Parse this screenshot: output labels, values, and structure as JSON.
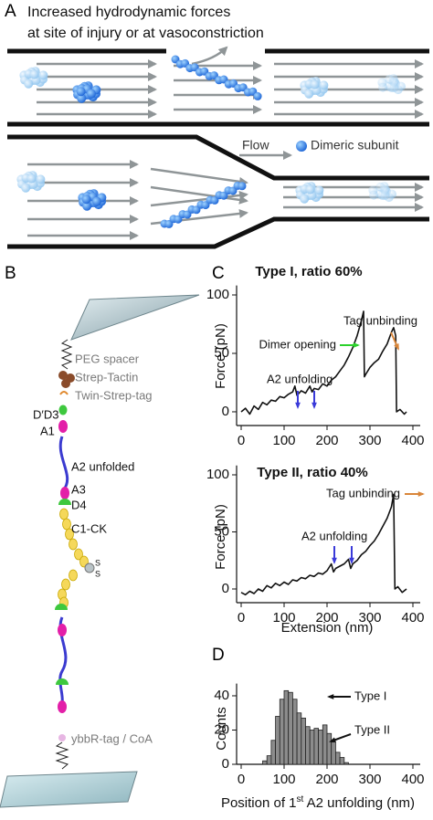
{
  "panel_a": {
    "label": "A",
    "title_lines": [
      "Increased hydrodynamic forces",
      "at site of injury or at vasoconstriction"
    ],
    "legend_flow": "Flow",
    "legend_subunit": "Dimeric subunit"
  },
  "panel_b": {
    "label": "B",
    "labels": [
      "PEG spacer",
      "Strep-Tactin",
      "Twin-Strep-tag",
      "D′D3",
      "A1",
      "A2 unfolded",
      "A3",
      "D4",
      "C1-CK",
      "S",
      "S",
      "ybbR-tag / CoA"
    ]
  },
  "panel_c": {
    "label": "C"
  },
  "panel_d": {
    "label": "D"
  },
  "chart_data": [
    {
      "type": "line",
      "title": "Type I, ratio 60%",
      "ylabel": "Force (pN)",
      "color": "#111111",
      "x": [
        0,
        10,
        20,
        30,
        40,
        50,
        60,
        70,
        80,
        90,
        100,
        110,
        120,
        125,
        130,
        140,
        150,
        160,
        165,
        170,
        180,
        190,
        200,
        210,
        220,
        230,
        240,
        250,
        260,
        270,
        280,
        285,
        287,
        290,
        300,
        310,
        320,
        330,
        340,
        350,
        355,
        360,
        362,
        370,
        380,
        385
      ],
      "values": [
        0,
        3,
        -2,
        5,
        2,
        8,
        6,
        10,
        9,
        13,
        12,
        15,
        17,
        22,
        14,
        18,
        16,
        22,
        17,
        20,
        19,
        24,
        22,
        27,
        30,
        35,
        40,
        47,
        55,
        65,
        78,
        86,
        30,
        32,
        38,
        42,
        45,
        52,
        58,
        68,
        72,
        65,
        0,
        2,
        -2,
        0
      ],
      "xlim": [
        0,
        400
      ],
      "ylim": [
        -8,
        105
      ],
      "xticks": [
        0,
        100,
        200,
        300,
        400
      ],
      "yticks": [
        0,
        50,
        100
      ],
      "annotations": [
        {
          "text": "Dimer opening",
          "color": "#2bd12b"
        },
        {
          "text": "Tag unbinding",
          "color": "#d9863a"
        },
        {
          "text": "A2 unfolding",
          "color": "#3a3ad9"
        }
      ]
    },
    {
      "type": "line",
      "title": "Type II, ratio 40%",
      "ylabel": "Force (pN)",
      "xlabel": "Extension (nm)",
      "color": "#111111",
      "x": [
        0,
        10,
        20,
        30,
        40,
        50,
        60,
        70,
        80,
        90,
        100,
        110,
        120,
        130,
        140,
        150,
        160,
        170,
        180,
        190,
        200,
        210,
        215,
        220,
        230,
        240,
        250,
        255,
        260,
        270,
        280,
        290,
        300,
        310,
        320,
        330,
        340,
        350,
        355,
        358,
        365,
        375,
        385
      ],
      "values": [
        -3,
        -5,
        -2,
        -4,
        0,
        -2,
        3,
        1,
        5,
        3,
        6,
        4,
        8,
        7,
        10,
        9,
        12,
        11,
        14,
        13,
        16,
        22,
        15,
        18,
        20,
        22,
        26,
        18,
        22,
        25,
        30,
        33,
        38,
        42,
        48,
        55,
        62,
        72,
        83,
        0,
        2,
        -3,
        0
      ],
      "xlim": [
        0,
        400
      ],
      "ylim": [
        -8,
        105
      ],
      "xticks": [
        0,
        100,
        200,
        300,
        400
      ],
      "yticks": [
        0,
        50,
        100
      ],
      "annotations": [
        {
          "text": "Tag unbinding",
          "color": "#d9863a"
        },
        {
          "text": "A2 unfolding",
          "color": "#3a3ad9"
        }
      ]
    },
    {
      "type": "histogram",
      "ylabel": "Counts",
      "xlabel_parts": [
        "Position of 1",
        "st",
        " A2 unfolding (nm)"
      ],
      "color": "#8c8c8c",
      "bins": [
        50,
        60,
        70,
        80,
        90,
        100,
        110,
        120,
        130,
        140,
        150,
        160,
        170,
        180,
        190,
        200,
        210,
        220,
        230,
        240,
        250
      ],
      "values": [
        2,
        5,
        14,
        28,
        38,
        43,
        42,
        38,
        30,
        27,
        22,
        20,
        21,
        20,
        23,
        18,
        13,
        7,
        4,
        1
      ],
      "xlim": [
        0,
        400
      ],
      "ylim": [
        0,
        45
      ],
      "xticks": [
        0,
        100,
        200,
        300,
        400
      ],
      "yticks": [
        0,
        20,
        40
      ],
      "annotations": [
        {
          "text": "Type I",
          "color": "#111111"
        },
        {
          "text": "Type II",
          "color": "#111111"
        }
      ]
    }
  ]
}
